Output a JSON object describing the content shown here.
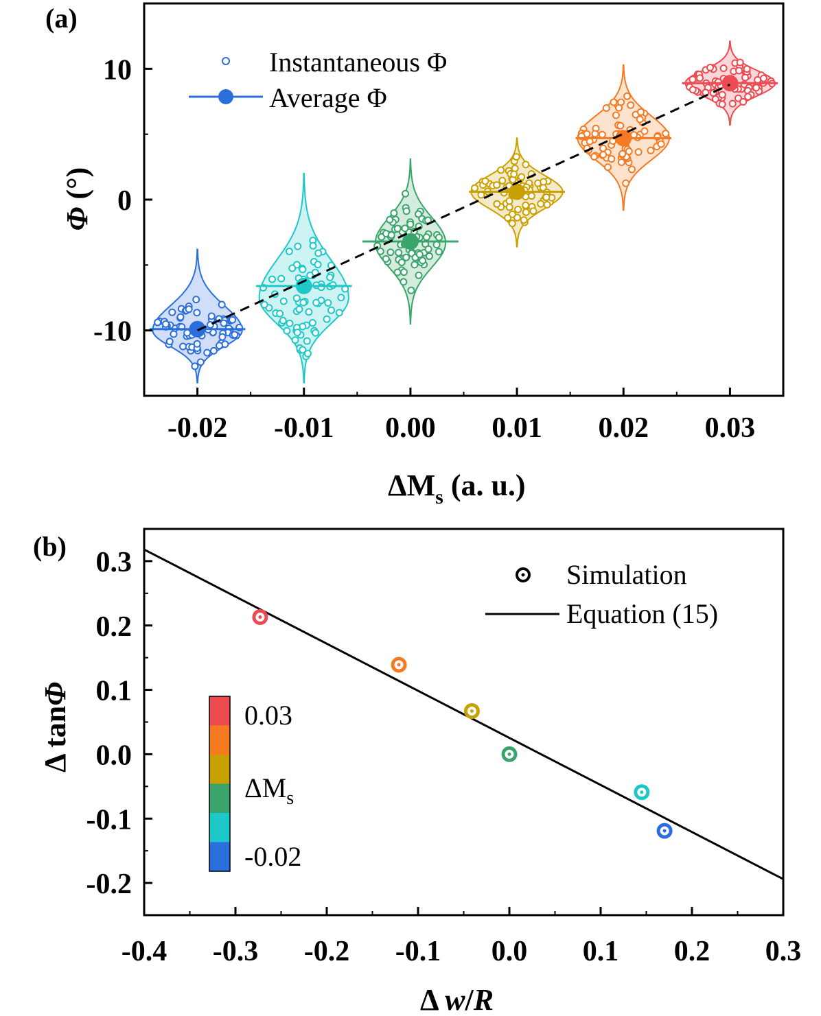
{
  "chart_data": [
    {
      "panel": "(a)",
      "type": "violin+scatter",
      "xlabel": "ΔMs (a. u.)",
      "ylabel": "Φ (°)",
      "xlim": [
        -0.025,
        0.035
      ],
      "ylim": [
        -15,
        15
      ],
      "xticks": [
        "-0.02",
        "-0.01",
        "0.00",
        "0.01",
        "0.02",
        "0.03"
      ],
      "yticks": [
        "-10",
        "0",
        "10"
      ],
      "legend": {
        "position": "top-left",
        "entries": [
          "Instantaneous Φ",
          "Average Φ"
        ]
      },
      "fit_line": {
        "style": "dashed",
        "color": "#000000",
        "from": [
          -0.02,
          -10.0
        ],
        "to": [
          0.03,
          8.8
        ]
      },
      "groups": [
        {
          "x": -0.02,
          "mean": -9.9,
          "color": "#2a6fdb",
          "min": -14.0,
          "max": -3.8,
          "peak": -10.0,
          "halfwidth": 0.0042,
          "spread": 1.4
        },
        {
          "x": -0.01,
          "mean": -6.6,
          "color": "#1ec8c8",
          "min": -14.0,
          "max": 2.0,
          "peak": -7.5,
          "halfwidth": 0.0042,
          "spread": 2.6
        },
        {
          "x": 0.0,
          "mean": -3.2,
          "color": "#3aa56a",
          "min": -9.5,
          "max": 3.1,
          "peak": -3.3,
          "halfwidth": 0.0033,
          "spread": 1.6
        },
        {
          "x": 0.01,
          "mean": 0.6,
          "color": "#c9a000",
          "min": -3.6,
          "max": 4.7,
          "peak": 0.6,
          "halfwidth": 0.0043,
          "spread": 1.2
        },
        {
          "x": 0.02,
          "mean": 4.7,
          "color": "#f57a22",
          "min": -0.8,
          "max": 10.3,
          "peak": 4.7,
          "halfwidth": 0.0043,
          "spread": 1.6
        },
        {
          "x": 0.03,
          "mean": 8.9,
          "color": "#ee4a52",
          "min": 5.7,
          "max": 12.1,
          "peak": 8.9,
          "halfwidth": 0.0042,
          "spread": 0.9
        }
      ]
    },
    {
      "panel": "(b)",
      "type": "scatter+line",
      "xlabel": "Δ w/R",
      "ylabel": "Δ tanΦ",
      "xlim": [
        -0.4,
        0.3
      ],
      "ylim": [
        -0.25,
        0.35
      ],
      "xticks": [
        "-0.4",
        "-0.3",
        "-0.2",
        "-0.1",
        "0.0",
        "0.1",
        "0.2",
        "0.3"
      ],
      "yticks": [
        "-0.2",
        "-0.1",
        "0.0",
        "0.1",
        "0.2",
        "0.3"
      ],
      "legend": {
        "position": "top-right",
        "entries": [
          "Simulation",
          "Equation (15)"
        ]
      },
      "line": {
        "x": [
          -0.4,
          0.3
        ],
        "y": [
          0.318,
          -0.194
        ]
      },
      "points": [
        {
          "x": -0.273,
          "y": 0.213,
          "color": "#ee4a52"
        },
        {
          "x": -0.121,
          "y": 0.139,
          "color": "#f57a22"
        },
        {
          "x": -0.041,
          "y": 0.067,
          "color": "#c9a000"
        },
        {
          "x": 0.0,
          "y": 0.0,
          "color": "#3aa56a"
        },
        {
          "x": 0.145,
          "y": -0.059,
          "color": "#1ec8c8"
        },
        {
          "x": 0.17,
          "y": -0.119,
          "color": "#2a6fdb"
        }
      ],
      "colorbar": {
        "title": "ΔMs",
        "top_label": "0.03",
        "bottom_label": "-0.02",
        "colors": [
          "#ee4a52",
          "#f57a22",
          "#c9a000",
          "#3aa56a",
          "#1ec8c8",
          "#2a6fdb"
        ]
      }
    }
  ]
}
